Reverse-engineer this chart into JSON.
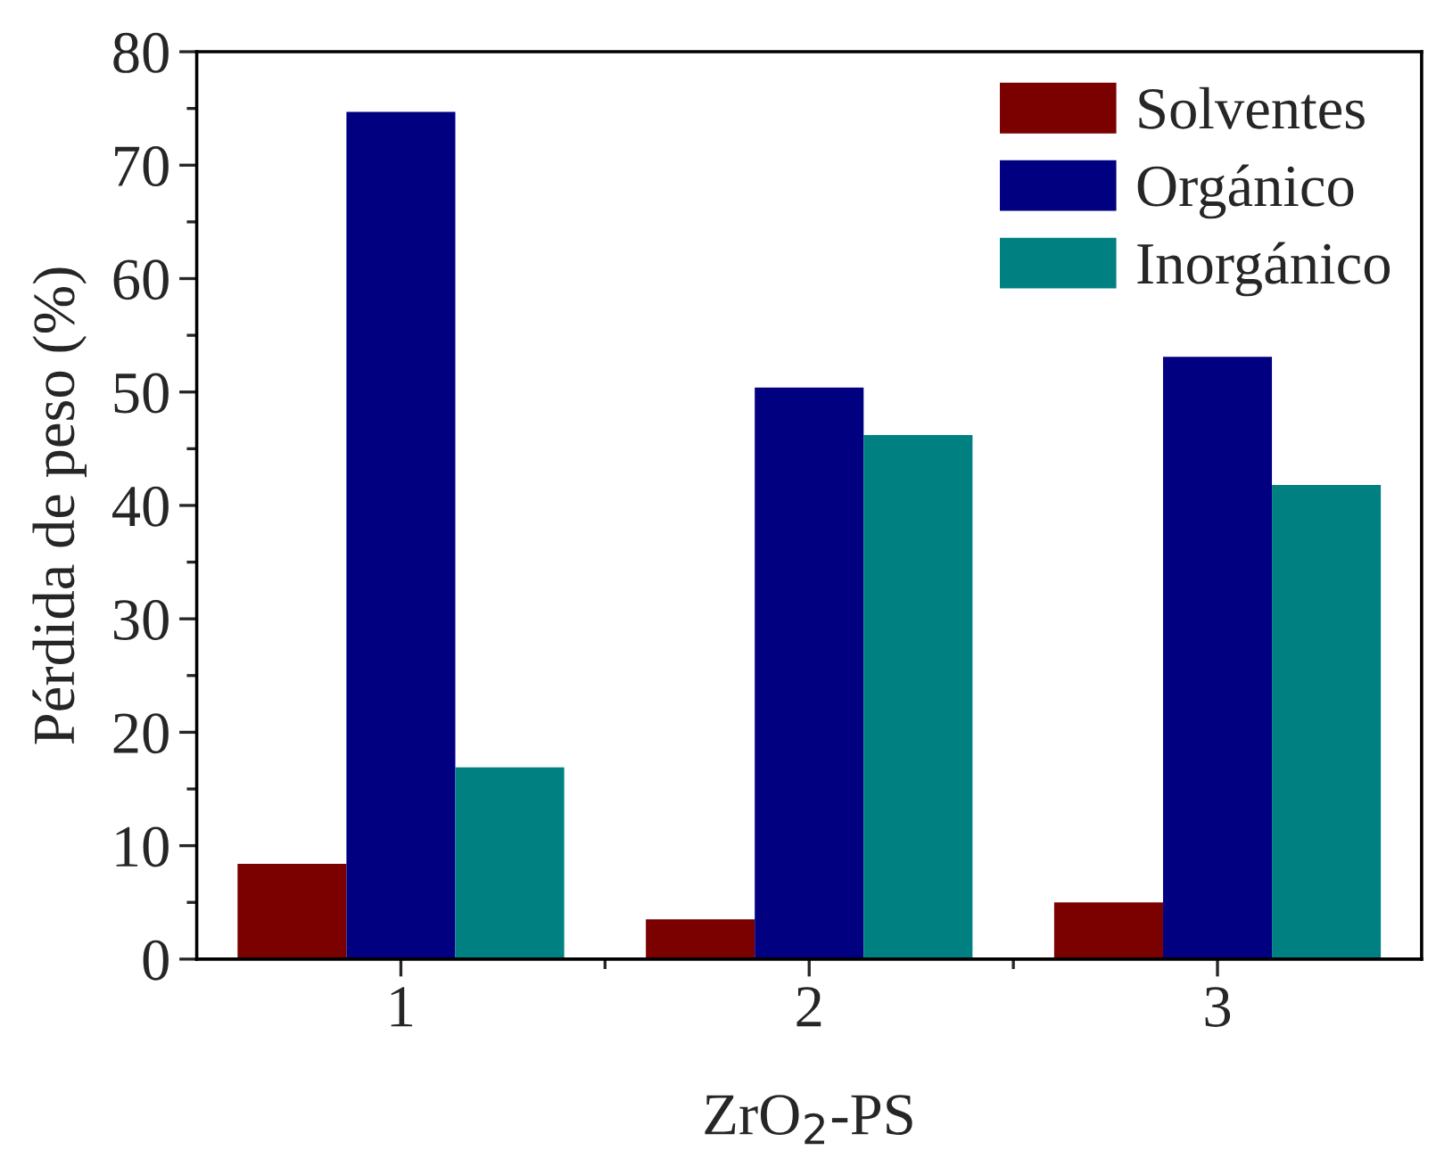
{
  "chart_data": {
    "type": "bar",
    "categories": [
      "1",
      "2",
      "3"
    ],
    "xlabel": "ZrO$_{2}$-PS",
    "ylabel": "Pérdida de peso (%)",
    "series": [
      {
        "name": "Solventes",
        "color": "#7b0000",
        "values": [
          8.4,
          3.5,
          5.0
        ]
      },
      {
        "name": "Orgánico",
        "color": "#000080",
        "values": [
          74.7,
          50.4,
          53.1
        ]
      },
      {
        "name": "Inorgánico",
        "color": "#008080",
        "values": [
          16.9,
          46.2,
          41.8
        ]
      }
    ],
    "ylim": [
      0,
      80
    ],
    "yticks": [
      0,
      10,
      20,
      30,
      40,
      50,
      60,
      70,
      80
    ],
    "legend": "top right",
    "grid": false
  }
}
